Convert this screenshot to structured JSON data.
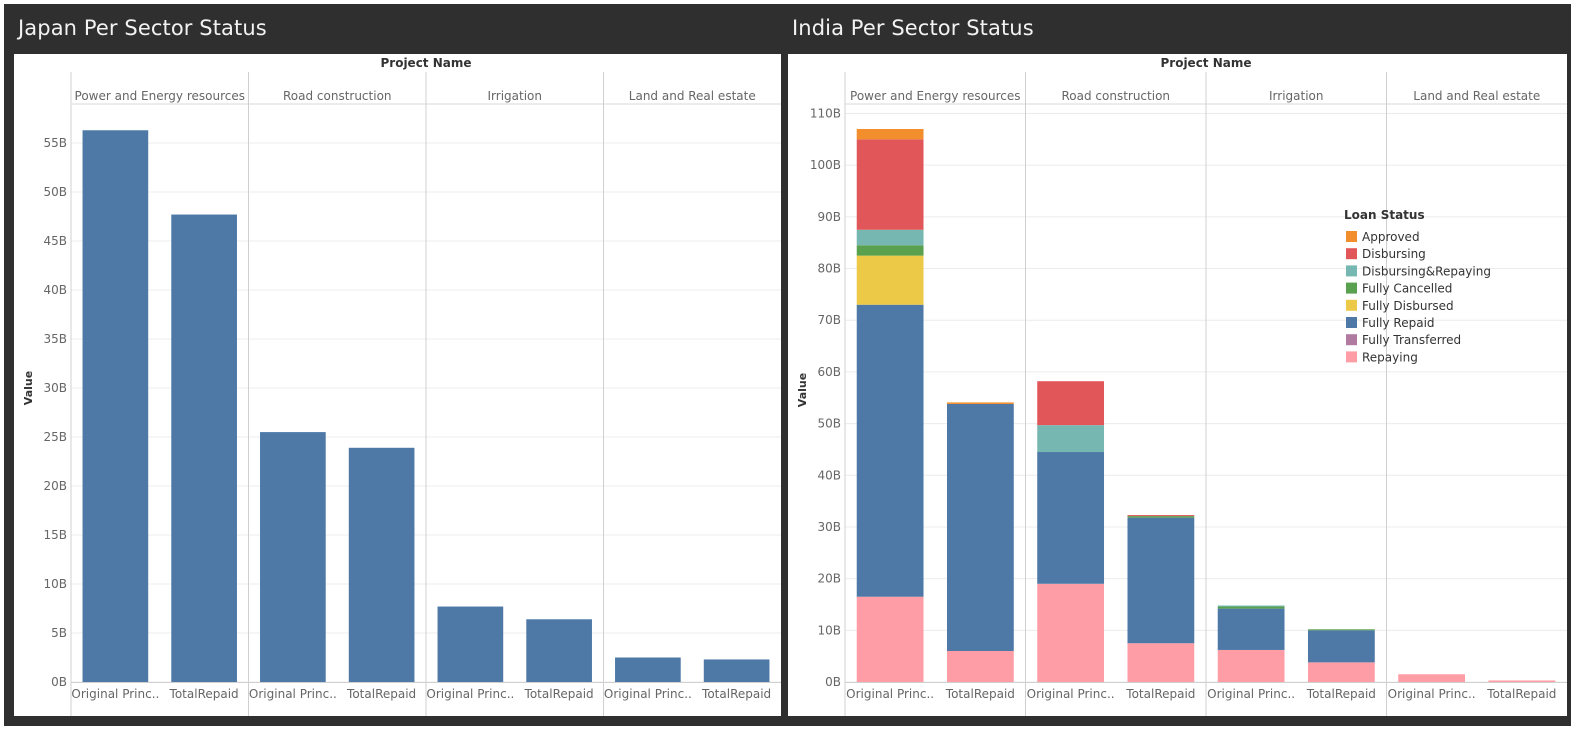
{
  "dashboard": {
    "left_title": "Japan Per Sector Status",
    "right_title": "India Per Sector Status"
  },
  "colors": {
    "Approved": "#f28e2b",
    "Disbursing": "#e15759",
    "Disbursing&Repaying": "#76b7b2",
    "Fully Cancelled": "#59a14f",
    "Fully Disbursed": "#edc948",
    "Fully Repaid": "#4e79a7",
    "Fully Transferred": "#b07aa1",
    "Repaying": "#ff9da7"
  },
  "chart_data": [
    {
      "type": "bar",
      "title": "Japan Per Sector Status",
      "column_header": "Project Name",
      "ylabel": "Value",
      "ylim": [
        0,
        60
      ],
      "ytick_values": [
        0,
        5,
        10,
        15,
        20,
        25,
        30,
        35,
        40,
        45,
        50,
        55
      ],
      "ytick_labels": [
        "0B",
        "5B",
        "10B",
        "15B",
        "20B",
        "25B",
        "30B",
        "35B",
        "40B",
        "45B",
        "50B",
        "55B"
      ],
      "groups": [
        "Power and Energy resources",
        "Road construction",
        "Irrigation",
        "Land and Real estate"
      ],
      "bar_labels": [
        "Original Princ..",
        "TotalRepaid"
      ],
      "series": [
        {
          "name": "Fully Repaid",
          "values": [
            [
              56.3,
              47.7
            ],
            [
              25.5,
              23.9
            ],
            [
              7.7,
              6.4
            ],
            [
              2.5,
              2.3
            ]
          ]
        }
      ],
      "grid": true,
      "legend": "none"
    },
    {
      "type": "bar",
      "stacked": true,
      "title": "India Per Sector Status",
      "column_header": "Project Name",
      "ylabel": "Value",
      "ylim": [
        0,
        113
      ],
      "ytick_values": [
        0,
        10,
        20,
        30,
        40,
        50,
        60,
        70,
        80,
        90,
        100,
        110
      ],
      "ytick_labels": [
        "0B",
        "10B",
        "20B",
        "30B",
        "40B",
        "50B",
        "60B",
        "70B",
        "80B",
        "90B",
        "100B",
        "110B"
      ],
      "groups": [
        "Power and Energy resources",
        "Road construction",
        "Irrigation",
        "Land and Real estate"
      ],
      "bar_labels": [
        "Original Princ..",
        "TotalRepaid"
      ],
      "legend_title": "Loan Status",
      "legend_entries": [
        "Approved",
        "Disbursing",
        "Disbursing&Repaying",
        "Fully Cancelled",
        "Fully Disbursed",
        "Fully Repaid",
        "Fully Transferred",
        "Repaying"
      ],
      "legend": "right",
      "series": [
        {
          "name": "Repaying",
          "values": [
            [
              16.5,
              6.0
            ],
            [
              19.0,
              7.5
            ],
            [
              6.2,
              3.8
            ],
            [
              1.5,
              0.3
            ]
          ]
        },
        {
          "name": "Fully Transferred",
          "values": [
            [
              0,
              0
            ],
            [
              0,
              0
            ],
            [
              0,
              0
            ],
            [
              0,
              0
            ]
          ]
        },
        {
          "name": "Fully Repaid",
          "values": [
            [
              56.5,
              47.8
            ],
            [
              25.5,
              24.3
            ],
            [
              8.0,
              6.2
            ],
            [
              0,
              0
            ]
          ]
        },
        {
          "name": "Fully Disbursed",
          "values": [
            [
              9.5,
              0
            ],
            [
              0,
              0
            ],
            [
              0,
              0
            ],
            [
              0,
              0
            ]
          ]
        },
        {
          "name": "Fully Cancelled",
          "values": [
            [
              2.0,
              0
            ],
            [
              0,
              0.3
            ],
            [
              0.4,
              0.2
            ],
            [
              0,
              0
            ]
          ]
        },
        {
          "name": "Disbursing&Repaying",
          "values": [
            [
              3.0,
              0
            ],
            [
              5.2,
              0
            ],
            [
              0.2,
              0
            ],
            [
              0,
              0
            ]
          ]
        },
        {
          "name": "Disbursing",
          "values": [
            [
              17.5,
              0
            ],
            [
              8.5,
              0.2
            ],
            [
              0,
              0
            ],
            [
              0,
              0
            ]
          ]
        },
        {
          "name": "Approved",
          "values": [
            [
              2.0,
              0.3
            ],
            [
              0,
              0
            ],
            [
              0,
              0
            ],
            [
              0,
              0
            ]
          ]
        }
      ],
      "grid": true
    }
  ]
}
